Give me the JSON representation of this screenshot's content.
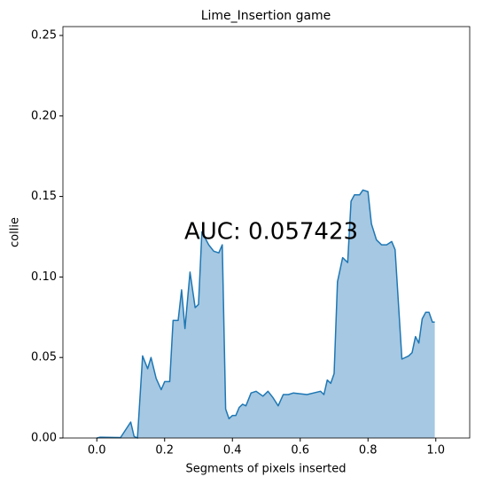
{
  "chart_data": {
    "type": "area",
    "title": "Lime_Insertion game",
    "x_label": "Segments of pixels inserted",
    "y_label": "collie",
    "annotation": "AUC: 0.057423",
    "color": "#1f77b4",
    "fill_color": "#a6c8e2",
    "xlim": [
      -0.1,
      1.1
    ],
    "ylim": [
      0,
      0.2555
    ],
    "xticks": [
      {
        "value": 0,
        "label": "0.0"
      },
      {
        "value": 0.2,
        "label": "0.2"
      },
      {
        "value": 0.4,
        "label": "0.4"
      },
      {
        "value": 0.6,
        "label": "0.6"
      },
      {
        "value": 0.8,
        "label": "0.8"
      },
      {
        "value": 1,
        "label": "1.0"
      }
    ],
    "yticks": [
      {
        "value": 0,
        "label": "0.00"
      },
      {
        "value": 0.05,
        "label": "0.05"
      },
      {
        "value": 0.1,
        "label": "0.10"
      },
      {
        "value": 0.15,
        "label": "0.15"
      },
      {
        "value": 0.2,
        "label": "0.20"
      },
      {
        "value": 0.25,
        "label": "0.25"
      }
    ],
    "series": [
      {
        "name": "collie",
        "x": [
          0,
          0.01,
          0.07,
          0.1,
          0.11,
          0.12,
          0.135,
          0.15,
          0.16,
          0.175,
          0.19,
          0.2,
          0.215,
          0.225,
          0.24,
          0.25,
          0.26,
          0.275,
          0.29,
          0.3,
          0.31,
          0.33,
          0.345,
          0.36,
          0.37,
          0.38,
          0.39,
          0.4,
          0.41,
          0.42,
          0.43,
          0.44,
          0.455,
          0.47,
          0.49,
          0.505,
          0.52,
          0.535,
          0.55,
          0.565,
          0.58,
          0.62,
          0.66,
          0.67,
          0.68,
          0.69,
          0.7,
          0.71,
          0.725,
          0.74,
          0.75,
          0.76,
          0.775,
          0.785,
          0.8,
          0.81,
          0.825,
          0.84,
          0.855,
          0.87,
          0.88,
          0.9,
          0.92,
          0.93,
          0.94,
          0.95,
          0.96,
          0.97,
          0.98,
          0.99,
          0.997
        ],
        "values": [
          0,
          0.0005,
          0.0003,
          0.0099,
          0.001,
          0,
          0.051,
          0.043,
          0.05,
          0.037,
          0.03,
          0.035,
          0.035,
          0.073,
          0.073,
          0.092,
          0.068,
          0.103,
          0.081,
          0.083,
          0.128,
          0.12,
          0.116,
          0.115,
          0.12,
          0.018,
          0.012,
          0.014,
          0.014,
          0.019,
          0.021,
          0.02,
          0.028,
          0.029,
          0.026,
          0.029,
          0.025,
          0.02,
          0.027,
          0.027,
          0.028,
          0.027,
          0.029,
          0.027,
          0.036,
          0.034,
          0.04,
          0.097,
          0.112,
          0.109,
          0.147,
          0.151,
          0.151,
          0.154,
          0.153,
          0.133,
          0.123,
          0.12,
          0.12,
          0.122,
          0.117,
          0.049,
          0.051,
          0.053,
          0.063,
          0.059,
          0.074,
          0.078,
          0.078,
          0.072,
          0.072
        ]
      }
    ]
  }
}
